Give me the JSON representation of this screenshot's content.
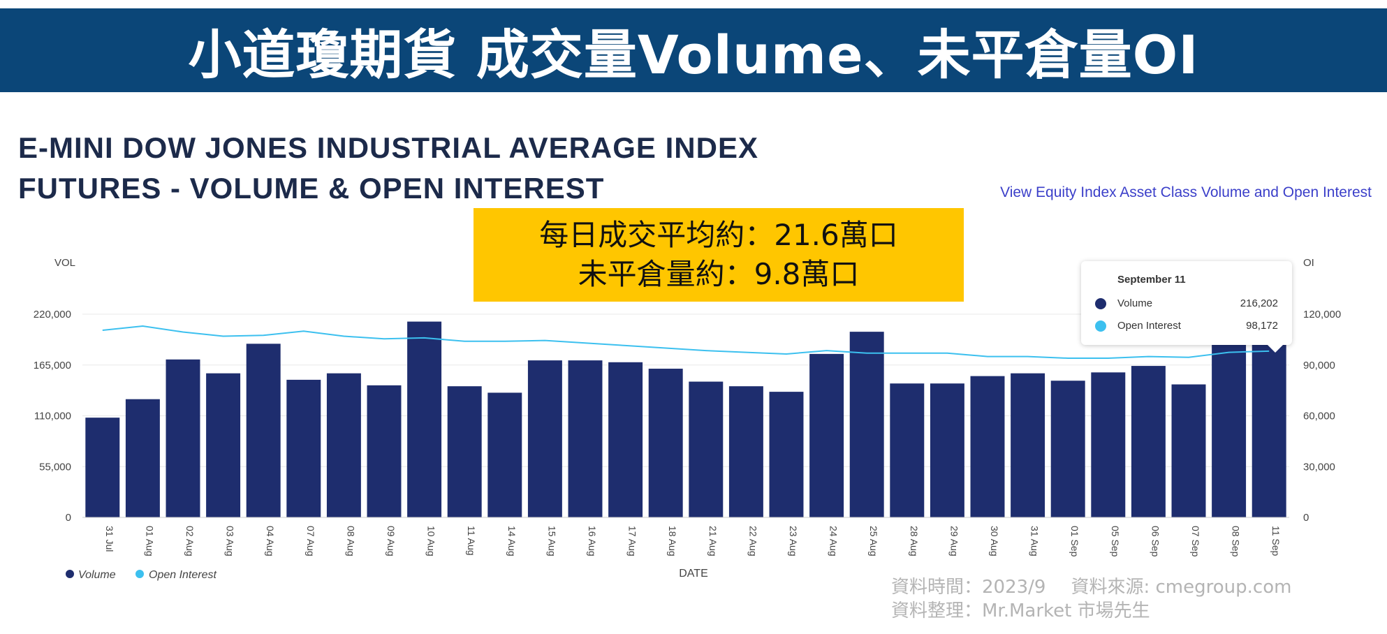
{
  "banner": {
    "title": "小道瓊期貨 成交量Volume、未平倉量OI"
  },
  "chart_title": {
    "line1": "E-MINI DOW JONES INDUSTRIAL AVERAGE INDEX",
    "line2": "FUTURES - VOLUME & OPEN INTEREST"
  },
  "link": {
    "label": "View Equity Index Asset Class Volume and Open Interest"
  },
  "callout": {
    "line1": "每日成交平均約：21.6萬口",
    "line2": "未平倉量約：9.8萬口"
  },
  "tooltip": {
    "title": "September 11",
    "rows": [
      {
        "label": "Volume",
        "value": "216,202",
        "color": "#1e2d6e"
      },
      {
        "label": "Open Interest",
        "value": "98,172",
        "color": "#3cc0ef"
      }
    ]
  },
  "source": {
    "time": "資料時間：2023/9",
    "origin": "資料來源: cmegroup.com",
    "compiled": "資料整理：Mr.Market 市場先生"
  },
  "colors": {
    "banner": "#0b4678",
    "volume": "#1e2d6e",
    "open_interest": "#3cc0ef",
    "callout": "#ffc600"
  },
  "chart_data": {
    "type": "bar",
    "xlabel": "DATE",
    "ylabel_left": "VOL",
    "ylabel_right": "OI",
    "ylim_left": [
      0,
      220000
    ],
    "ylim_right": [
      0,
      120000
    ],
    "yticks_left": [
      "0",
      "55,000",
      "110,000",
      "165,000",
      "220,000"
    ],
    "yticks_right": [
      "0",
      "30,000",
      "60,000",
      "90,000",
      "120,000"
    ],
    "grid": true,
    "legend_position": "bottom-left",
    "categories": [
      "31 Jul",
      "01 Aug",
      "02 Aug",
      "03 Aug",
      "04 Aug",
      "07 Aug",
      "08 Aug",
      "09 Aug",
      "10 Aug",
      "11 Aug",
      "14 Aug",
      "15 Aug",
      "16 Aug",
      "17 Aug",
      "18 Aug",
      "21 Aug",
      "22 Aug",
      "23 Aug",
      "24 Aug",
      "25 Aug",
      "28 Aug",
      "29 Aug",
      "30 Aug",
      "31 Aug",
      "01 Sep",
      "05 Sep",
      "06 Sep",
      "07 Sep",
      "08 Sep",
      "11 Sep"
    ],
    "series": [
      {
        "name": "Volume",
        "type": "bar",
        "axis": "left",
        "values": [
          108000,
          128000,
          171000,
          156000,
          188000,
          149000,
          156000,
          143000,
          212000,
          142000,
          135000,
          170000,
          170000,
          168000,
          161000,
          147000,
          142000,
          136000,
          177000,
          201000,
          145000,
          145000,
          153000,
          156000,
          148000,
          157000,
          164000,
          144000,
          196000,
          216202
        ]
      },
      {
        "name": "Open Interest",
        "type": "line",
        "axis": "right",
        "values": [
          110500,
          113000,
          109500,
          107000,
          107500,
          110000,
          107000,
          105500,
          106000,
          104000,
          104000,
          104500,
          103000,
          101500,
          100000,
          98500,
          97500,
          96500,
          98500,
          97000,
          97000,
          97000,
          95000,
          95000,
          94000,
          94000,
          95000,
          94500,
          97500,
          98172
        ]
      }
    ]
  }
}
